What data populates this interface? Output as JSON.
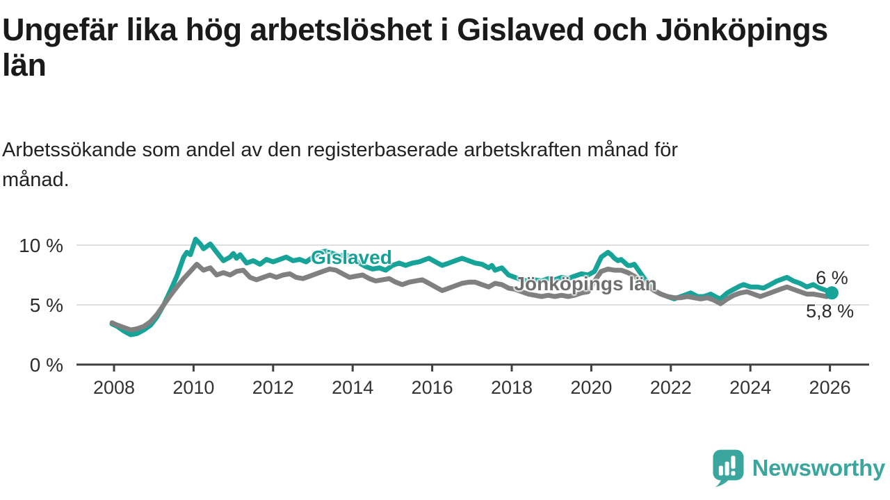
{
  "header": {
    "title": "Ungefär lika hög arbetslöshet i Gislaved och Jönköpings län",
    "title_lines": [
      "Ungefär lika hög arbetslöshet i Gislaved och Jönköpings",
      "län"
    ],
    "subtitle": "Arbetssökande som andel av den registerbaserade arbetskraften månad för månad.",
    "subtitle_lines": [
      "Arbetssökande som andel av den registerbaserade arbetskraften månad för",
      "månad."
    ]
  },
  "footer": {
    "brand": "Newsworthy",
    "brand_color": "#3aa69e",
    "logo_icon": "bar-chart-speech-bubble-icon"
  },
  "colors": {
    "gislaved": "#17a398",
    "jonkoping": "#808080",
    "label_gray": "#6f6f6f",
    "axis": "#404040",
    "grid": "#d4d4d4",
    "tick_text": "#333333",
    "value_text": "#2b2b2b"
  },
  "chart_data": {
    "type": "line",
    "title": "Ungefär lika hög arbetslöshet i Gislaved och Jönköpings län",
    "xlabel": "",
    "ylabel": "",
    "x_range": [
      2007.9,
      2027.0
    ],
    "y_range": [
      0,
      11.4
    ],
    "grid": "horizontal",
    "legend_position": "inline-labels",
    "x_axis": {
      "ticks": [
        {
          "value": 2008,
          "label": "2008"
        },
        {
          "value": 2010,
          "label": "2010"
        },
        {
          "value": 2012,
          "label": "2012"
        },
        {
          "value": 2014,
          "label": "2014"
        },
        {
          "value": 2016,
          "label": "2016"
        },
        {
          "value": 2018,
          "label": "2018"
        },
        {
          "value": 2020,
          "label": "2020"
        },
        {
          "value": 2022,
          "label": "2022"
        },
        {
          "value": 2024,
          "label": "2024"
        },
        {
          "value": 2026,
          "label": "2026"
        }
      ]
    },
    "y_axis": {
      "ticks": [
        {
          "value": 0,
          "label": "0 %"
        },
        {
          "value": 5,
          "label": "5 %"
        },
        {
          "value": 10,
          "label": "10 %"
        }
      ]
    },
    "series": [
      {
        "name": "Gislaved",
        "color": "#17a398",
        "end_label": "6 %",
        "end_value": "6 %",
        "end_dot": true,
        "points": [
          [
            2007.95,
            3.4
          ],
          [
            2008.08,
            3.2
          ],
          [
            2008.25,
            2.8
          ],
          [
            2008.42,
            2.5
          ],
          [
            2008.58,
            2.6
          ],
          [
            2008.75,
            2.9
          ],
          [
            2008.92,
            3.3
          ],
          [
            2009.08,
            4.0
          ],
          [
            2009.25,
            5.0
          ],
          [
            2009.42,
            6.2
          ],
          [
            2009.58,
            7.4
          ],
          [
            2009.75,
            9.0
          ],
          [
            2009.83,
            9.4
          ],
          [
            2009.92,
            9.2
          ],
          [
            2010.05,
            10.5
          ],
          [
            2010.17,
            10.1
          ],
          [
            2010.25,
            9.7
          ],
          [
            2010.42,
            10.1
          ],
          [
            2010.58,
            9.4
          ],
          [
            2010.75,
            8.7
          ],
          [
            2010.92,
            9.0
          ],
          [
            2011.0,
            9.3
          ],
          [
            2011.08,
            8.9
          ],
          [
            2011.17,
            9.2
          ],
          [
            2011.33,
            8.5
          ],
          [
            2011.5,
            8.7
          ],
          [
            2011.67,
            8.4
          ],
          [
            2011.83,
            8.8
          ],
          [
            2012.0,
            8.6
          ],
          [
            2012.17,
            8.8
          ],
          [
            2012.33,
            9.0
          ],
          [
            2012.5,
            8.7
          ],
          [
            2012.67,
            8.8
          ],
          [
            2012.83,
            8.6
          ],
          [
            2013.0,
            9.0
          ],
          [
            2013.17,
            9.4
          ],
          [
            2013.33,
            9.5
          ],
          [
            2013.5,
            9.3
          ],
          [
            2013.67,
            9.1
          ],
          [
            2013.83,
            9.2
          ],
          [
            2014.0,
            8.9
          ],
          [
            2014.17,
            8.5
          ],
          [
            2014.33,
            8.2
          ],
          [
            2014.5,
            8.0
          ],
          [
            2014.67,
            8.1
          ],
          [
            2014.83,
            7.9
          ],
          [
            2015.0,
            8.3
          ],
          [
            2015.17,
            8.5
          ],
          [
            2015.33,
            8.3
          ],
          [
            2015.5,
            8.5
          ],
          [
            2015.67,
            8.6
          ],
          [
            2015.83,
            8.8
          ],
          [
            2015.92,
            8.9
          ],
          [
            2016.08,
            8.6
          ],
          [
            2016.25,
            8.3
          ],
          [
            2016.42,
            8.5
          ],
          [
            2016.58,
            8.7
          ],
          [
            2016.75,
            8.9
          ],
          [
            2016.92,
            8.7
          ],
          [
            2017.08,
            8.5
          ],
          [
            2017.25,
            8.4
          ],
          [
            2017.42,
            8.1
          ],
          [
            2017.5,
            8.3
          ],
          [
            2017.58,
            7.9
          ],
          [
            2017.75,
            8.1
          ],
          [
            2017.92,
            7.5
          ],
          [
            2018.08,
            7.3
          ],
          [
            2018.25,
            7.1
          ],
          [
            2018.42,
            7.0
          ],
          [
            2018.58,
            7.1
          ],
          [
            2018.75,
            7.0
          ],
          [
            2018.92,
            7.2
          ],
          [
            2019.08,
            7.1
          ],
          [
            2019.25,
            7.3
          ],
          [
            2019.42,
            7.2
          ],
          [
            2019.58,
            7.4
          ],
          [
            2019.75,
            7.6
          ],
          [
            2019.92,
            7.5
          ],
          [
            2020.08,
            7.8
          ],
          [
            2020.25,
            9.0
          ],
          [
            2020.42,
            9.4
          ],
          [
            2020.5,
            9.2
          ],
          [
            2020.58,
            8.9
          ],
          [
            2020.67,
            8.7
          ],
          [
            2020.75,
            8.8
          ],
          [
            2020.92,
            8.3
          ],
          [
            2021.0,
            8.3
          ],
          [
            2021.08,
            8.4
          ],
          [
            2021.25,
            7.6
          ],
          [
            2021.42,
            6.8
          ],
          [
            2021.58,
            6.2
          ],
          [
            2021.75,
            5.9
          ],
          [
            2021.92,
            5.7
          ],
          [
            2022.08,
            5.5
          ],
          [
            2022.25,
            5.7
          ],
          [
            2022.42,
            5.9
          ],
          [
            2022.5,
            6.0
          ],
          [
            2022.67,
            5.7
          ],
          [
            2022.83,
            5.7
          ],
          [
            2023.0,
            5.9
          ],
          [
            2023.17,
            5.6
          ],
          [
            2023.25,
            5.5
          ],
          [
            2023.42,
            6.0
          ],
          [
            2023.58,
            6.3
          ],
          [
            2023.75,
            6.6
          ],
          [
            2023.83,
            6.7
          ],
          [
            2024.0,
            6.5
          ],
          [
            2024.17,
            6.5
          ],
          [
            2024.33,
            6.4
          ],
          [
            2024.5,
            6.7
          ],
          [
            2024.67,
            7.0
          ],
          [
            2024.83,
            7.2
          ],
          [
            2024.92,
            7.3
          ],
          [
            2025.08,
            7.0
          ],
          [
            2025.25,
            6.8
          ],
          [
            2025.42,
            6.5
          ],
          [
            2025.58,
            6.7
          ],
          [
            2025.75,
            6.4
          ],
          [
            2025.92,
            6.2
          ],
          [
            2026.05,
            6.0
          ]
        ]
      },
      {
        "name": "Jönköpings län",
        "color": "#808080",
        "end_label": "5,8 %",
        "end_value": "5,8 %",
        "end_dot": false,
        "points": [
          [
            2007.95,
            3.5
          ],
          [
            2008.08,
            3.3
          ],
          [
            2008.25,
            3.1
          ],
          [
            2008.42,
            2.9
          ],
          [
            2008.58,
            3.0
          ],
          [
            2008.75,
            3.2
          ],
          [
            2008.92,
            3.6
          ],
          [
            2009.08,
            4.2
          ],
          [
            2009.25,
            5.0
          ],
          [
            2009.42,
            5.8
          ],
          [
            2009.58,
            6.5
          ],
          [
            2009.75,
            7.2
          ],
          [
            2009.92,
            7.8
          ],
          [
            2010.08,
            8.4
          ],
          [
            2010.25,
            7.9
          ],
          [
            2010.42,
            8.1
          ],
          [
            2010.58,
            7.5
          ],
          [
            2010.75,
            7.7
          ],
          [
            2010.92,
            7.5
          ],
          [
            2011.08,
            7.8
          ],
          [
            2011.25,
            7.9
          ],
          [
            2011.42,
            7.3
          ],
          [
            2011.58,
            7.1
          ],
          [
            2011.75,
            7.3
          ],
          [
            2011.92,
            7.5
          ],
          [
            2012.08,
            7.3
          ],
          [
            2012.25,
            7.5
          ],
          [
            2012.42,
            7.6
          ],
          [
            2012.58,
            7.3
          ],
          [
            2012.75,
            7.2
          ],
          [
            2012.92,
            7.4
          ],
          [
            2013.08,
            7.6
          ],
          [
            2013.25,
            7.8
          ],
          [
            2013.42,
            8.0
          ],
          [
            2013.58,
            7.9
          ],
          [
            2013.75,
            7.6
          ],
          [
            2013.92,
            7.3
          ],
          [
            2014.08,
            7.4
          ],
          [
            2014.25,
            7.5
          ],
          [
            2014.42,
            7.2
          ],
          [
            2014.58,
            7.0
          ],
          [
            2014.75,
            7.1
          ],
          [
            2014.92,
            7.2
          ],
          [
            2015.08,
            6.9
          ],
          [
            2015.25,
            6.7
          ],
          [
            2015.42,
            6.9
          ],
          [
            2015.58,
            7.0
          ],
          [
            2015.75,
            7.1
          ],
          [
            2015.92,
            6.8
          ],
          [
            2016.08,
            6.5
          ],
          [
            2016.25,
            6.2
          ],
          [
            2016.42,
            6.4
          ],
          [
            2016.58,
            6.6
          ],
          [
            2016.75,
            6.8
          ],
          [
            2016.92,
            6.9
          ],
          [
            2017.08,
            6.9
          ],
          [
            2017.25,
            6.7
          ],
          [
            2017.42,
            6.5
          ],
          [
            2017.58,
            6.8
          ],
          [
            2017.75,
            6.7
          ],
          [
            2017.92,
            6.4
          ],
          [
            2018.08,
            6.3
          ],
          [
            2018.25,
            6.1
          ],
          [
            2018.42,
            5.9
          ],
          [
            2018.58,
            5.8
          ],
          [
            2018.75,
            5.7
          ],
          [
            2018.92,
            5.8
          ],
          [
            2019.08,
            5.7
          ],
          [
            2019.25,
            5.8
          ],
          [
            2019.42,
            5.7
          ],
          [
            2019.58,
            5.8
          ],
          [
            2019.75,
            6.0
          ],
          [
            2019.92,
            6.1
          ],
          [
            2020.08,
            7.0
          ],
          [
            2020.25,
            7.8
          ],
          [
            2020.42,
            8.0
          ],
          [
            2020.58,
            7.9
          ],
          [
            2020.75,
            7.9
          ],
          [
            2020.92,
            7.7
          ],
          [
            2021.08,
            7.4
          ],
          [
            2021.25,
            7.0
          ],
          [
            2021.42,
            6.6
          ],
          [
            2021.58,
            6.2
          ],
          [
            2021.75,
            5.9
          ],
          [
            2021.92,
            5.7
          ],
          [
            2022.08,
            5.6
          ],
          [
            2022.25,
            5.6
          ],
          [
            2022.42,
            5.7
          ],
          [
            2022.58,
            5.6
          ],
          [
            2022.75,
            5.5
          ],
          [
            2022.92,
            5.6
          ],
          [
            2023.08,
            5.4
          ],
          [
            2023.25,
            5.1
          ],
          [
            2023.42,
            5.5
          ],
          [
            2023.58,
            5.8
          ],
          [
            2023.75,
            6.0
          ],
          [
            2023.92,
            6.1
          ],
          [
            2024.08,
            5.9
          ],
          [
            2024.25,
            5.7
          ],
          [
            2024.42,
            5.9
          ],
          [
            2024.58,
            6.1
          ],
          [
            2024.75,
            6.3
          ],
          [
            2024.92,
            6.5
          ],
          [
            2025.08,
            6.3
          ],
          [
            2025.25,
            6.1
          ],
          [
            2025.42,
            5.9
          ],
          [
            2025.58,
            5.9
          ],
          [
            2025.75,
            5.8
          ],
          [
            2025.92,
            5.7
          ],
          [
            2026.05,
            5.8
          ]
        ]
      }
    ],
    "annotations": [
      {
        "id": "gislaved-label",
        "text": "Gislaved",
        "x": 2012.95,
        "y": 8.55,
        "anchor": "start",
        "color": "#14a096",
        "bold": true
      },
      {
        "id": "jonkopings-lan-label",
        "text": "Jönköpings län",
        "x": 2018.06,
        "y": 6.35,
        "anchor": "start",
        "color": "#6f6f6f",
        "bold": true
      },
      {
        "id": "end-value-gislaved",
        "text": "6 %",
        "x": 2026.05,
        "y": 6.85,
        "anchor": "middle",
        "color": "#2b2b2b",
        "bold": false
      },
      {
        "id": "end-value-jonkopings",
        "text": "5,8 %",
        "x": 2026.0,
        "y": 4.08,
        "anchor": "middle",
        "color": "#2b2b2b",
        "bold": false
      }
    ]
  }
}
